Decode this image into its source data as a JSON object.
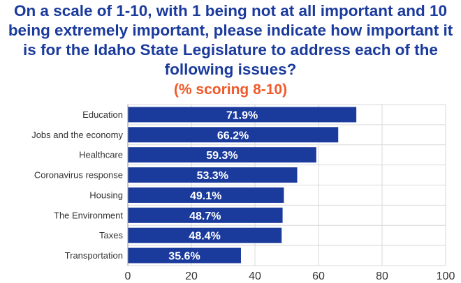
{
  "chart_data": {
    "type": "bar",
    "orientation": "horizontal",
    "title": "On a scale of 1-10, with 1 being not at all important and 10 being extremely important, please indicate how important it is for the Idaho State Legislature to address each of the following issues?",
    "subtitle": "(% scoring 8-10)",
    "categories": [
      "Education",
      "Jobs and the economy",
      "Healthcare",
      "Coronavirus response",
      "Housing",
      "The Environment",
      "Taxes",
      "Transportation"
    ],
    "values": [
      71.9,
      66.2,
      59.3,
      53.3,
      49.1,
      48.7,
      48.4,
      35.6
    ],
    "value_labels": [
      "71.9%",
      "66.2%",
      "59.3%",
      "53.3%",
      "49.1%",
      "48.7%",
      "48.4%",
      "35.6%"
    ],
    "xlim": [
      0,
      100
    ],
    "xticks": [
      0,
      20,
      40,
      60,
      80,
      100
    ],
    "grid": true,
    "colors": {
      "bar": "#1a3a9c",
      "title": "#1a3a9c",
      "subtitle": "#f0592a",
      "grid": "#d9d9d9"
    }
  }
}
